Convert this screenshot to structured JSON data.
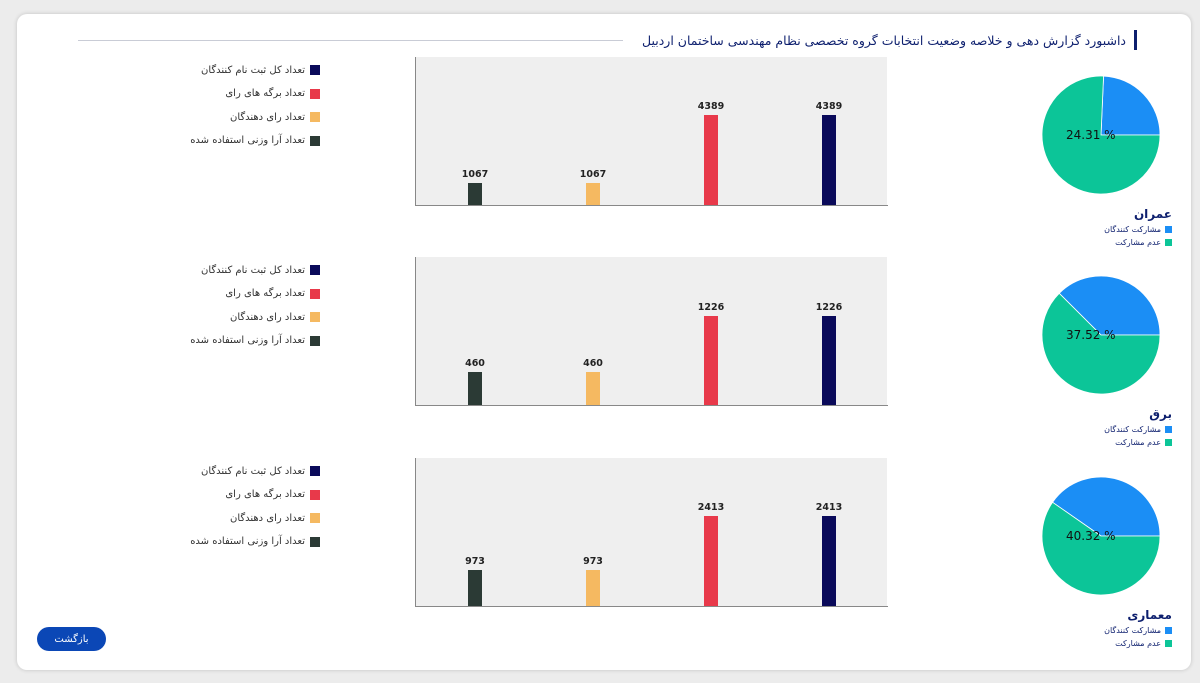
{
  "header": {
    "title": "داشبورد گزارش دهی و خلاصه وضعیت انتخابات گروه تخصصی نظام مهندسی ساختمان اردبیل"
  },
  "colors": {
    "registered": "#0a0a5a",
    "ballots": "#e8394a",
    "voters": "#f5b961",
    "weighted": "#2b3a35",
    "participants": "#1b8ef5",
    "non_participants": "#0cc598",
    "accent": "#0d1f6e",
    "button": "#0b47b6"
  },
  "legend_labels": {
    "registered": "تعداد کل ثبت نام کنندگان",
    "ballots": "تعداد برگه های رای",
    "voters": "تعداد رای دهندگان",
    "weighted": "تعداد آرا وزنی استفاده شده"
  },
  "pie_legend_labels": {
    "participants": "مشارکت کنندگان",
    "non_participants": "عدم مشارکت"
  },
  "groups": [
    {
      "name": "عمران",
      "participation_pct_label": "24.31 %"
    },
    {
      "name": "برق",
      "participation_pct_label": "37.52 %"
    },
    {
      "name": "معماری",
      "participation_pct_label": "40.32 %"
    }
  ],
  "back_button": {
    "label": "بازگشت"
  },
  "chart_data": [
    {
      "type": "bar",
      "group": "عمران",
      "categories": [
        "تعداد آرا وزنی استفاده شده",
        "تعداد رای دهندگان",
        "تعداد برگه های رای",
        "تعداد کل ثبت نام کنندگان"
      ],
      "values": [
        1067,
        1067,
        4389,
        4389
      ],
      "ylim": [
        0,
        7200
      ],
      "legend": "left"
    },
    {
      "type": "pie",
      "group": "عمران",
      "categories": [
        "مشارکت کنندگان",
        "عدم مشارکت"
      ],
      "values": [
        24.31,
        75.69
      ]
    },
    {
      "type": "bar",
      "group": "برق",
      "categories": [
        "تعداد آرا وزنی استفاده شده",
        "تعداد رای دهندگان",
        "تعداد برگه های رای",
        "تعداد کل ثبت نام کنندگان"
      ],
      "values": [
        460,
        460,
        1226,
        1226
      ],
      "ylim": [
        0,
        2050
      ],
      "legend": "left"
    },
    {
      "type": "pie",
      "group": "برق",
      "categories": [
        "مشارکت کنندگان",
        "عدم مشارکت"
      ],
      "values": [
        37.52,
        62.48
      ]
    },
    {
      "type": "bar",
      "group": "معماری",
      "categories": [
        "تعداد آرا وزنی استفاده شده",
        "تعداد رای دهندگان",
        "تعداد برگه های رای",
        "تعداد کل ثبت نام کنندگان"
      ],
      "values": [
        973,
        973,
        2413,
        2413
      ],
      "ylim": [
        0,
        3950
      ],
      "legend": "left"
    },
    {
      "type": "pie",
      "group": "معماری",
      "categories": [
        "مشارکت کنندگان",
        "عدم مشارکت"
      ],
      "values": [
        40.32,
        59.68
      ]
    }
  ]
}
